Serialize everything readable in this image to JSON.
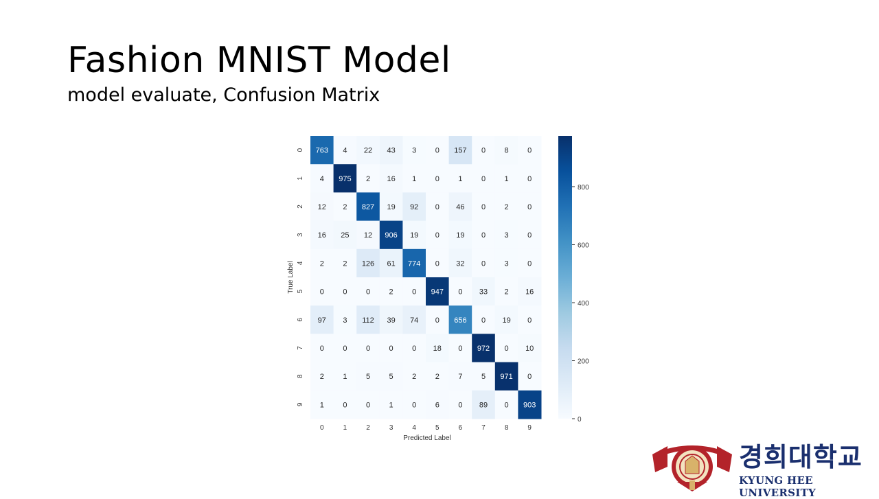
{
  "slide": {
    "title": "Fashion MNIST Model",
    "subtitle": "model evaluate, Confusion Matrix"
  },
  "logo": {
    "name_kr": "경희대학교",
    "name_en": "KYUNG HEE UNIVERSITY",
    "emblem_icon": "university-seal-icon",
    "colors": {
      "crimson": "#b3232a",
      "navy": "#1a2f6e",
      "gold": "#d8b26a"
    }
  },
  "chart_data": {
    "type": "heatmap",
    "title": "",
    "xlabel": "Predicted Label",
    "ylabel": "True Label",
    "x_ticks": [
      "0",
      "1",
      "2",
      "3",
      "4",
      "5",
      "6",
      "7",
      "8",
      "9"
    ],
    "y_ticks": [
      "0",
      "1",
      "2",
      "3",
      "4",
      "5",
      "6",
      "7",
      "8",
      "9"
    ],
    "matrix": [
      [
        763,
        4,
        22,
        43,
        3,
        0,
        157,
        0,
        8,
        0
      ],
      [
        4,
        975,
        2,
        16,
        1,
        0,
        1,
        0,
        1,
        0
      ],
      [
        12,
        2,
        827,
        19,
        92,
        0,
        46,
        0,
        2,
        0
      ],
      [
        16,
        25,
        12,
        906,
        19,
        0,
        19,
        0,
        3,
        0
      ],
      [
        2,
        2,
        126,
        61,
        774,
        0,
        32,
        0,
        3,
        0
      ],
      [
        0,
        0,
        0,
        2,
        0,
        947,
        0,
        33,
        2,
        16
      ],
      [
        97,
        3,
        112,
        39,
        74,
        0,
        656,
        0,
        19,
        0
      ],
      [
        0,
        0,
        0,
        0,
        0,
        18,
        0,
        972,
        0,
        10
      ],
      [
        2,
        1,
        5,
        5,
        2,
        2,
        7,
        5,
        971,
        0
      ],
      [
        1,
        0,
        0,
        1,
        0,
        6,
        0,
        89,
        0,
        903
      ]
    ],
    "colorbar": {
      "min": 0,
      "max": 975,
      "ticks": [
        "0",
        "200",
        "400",
        "600",
        "800"
      ],
      "colormap": "Blues"
    },
    "grid": false
  }
}
